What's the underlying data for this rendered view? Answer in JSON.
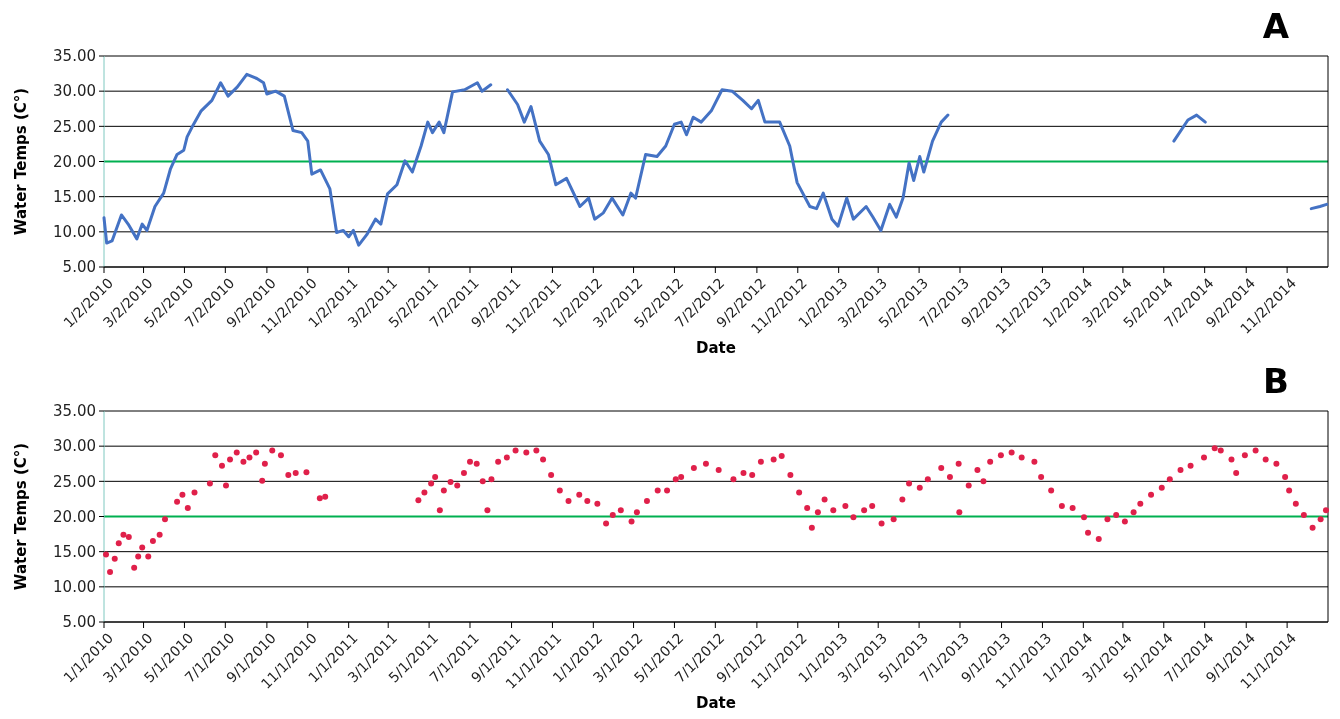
{
  "chart_data": [
    {
      "type": "line",
      "title": "A",
      "xlabel": "Date",
      "ylabel": "Water Temps (C°)",
      "grid": "y",
      "marker": "none",
      "line_style": "solid",
      "xlim": [
        "2010-01-02",
        "2015-01-02"
      ],
      "ylim": [
        5,
        35
      ],
      "yticks": [
        {
          "value": 5,
          "label": "5.00"
        },
        {
          "value": 10,
          "label": "10.00"
        },
        {
          "value": 15,
          "label": "15.00"
        },
        {
          "value": 20,
          "label": "20.00"
        },
        {
          "value": 25,
          "label": "25.00"
        },
        {
          "value": 30,
          "label": "30.00"
        },
        {
          "value": 35,
          "label": "35.00"
        }
      ],
      "xticks": [
        {
          "value": "2010-01-02",
          "label": "1/2/2010"
        },
        {
          "value": "2010-03-02",
          "label": "3/2/2010"
        },
        {
          "value": "2010-05-02",
          "label": "5/2/2010"
        },
        {
          "value": "2010-07-02",
          "label": "7/2/2010"
        },
        {
          "value": "2010-09-02",
          "label": "9/2/2010"
        },
        {
          "value": "2010-11-02",
          "label": "11/2/2010"
        },
        {
          "value": "2011-01-02",
          "label": "1/2/2011"
        },
        {
          "value": "2011-03-02",
          "label": "3/2/2011"
        },
        {
          "value": "2011-05-02",
          "label": "5/2/2011"
        },
        {
          "value": "2011-07-02",
          "label": "7/2/2011"
        },
        {
          "value": "2011-09-02",
          "label": "9/2/2011"
        },
        {
          "value": "2011-11-02",
          "label": "11/2/2011"
        },
        {
          "value": "2012-01-02",
          "label": "1/2/2012"
        },
        {
          "value": "2012-03-02",
          "label": "3/2/2012"
        },
        {
          "value": "2012-05-02",
          "label": "5/2/2012"
        },
        {
          "value": "2012-07-02",
          "label": "7/2/2012"
        },
        {
          "value": "2012-09-02",
          "label": "9/2/2012"
        },
        {
          "value": "2012-11-02",
          "label": "11/2/2012"
        },
        {
          "value": "2013-01-02",
          "label": "1/2/2013"
        },
        {
          "value": "2013-03-02",
          "label": "3/2/2013"
        },
        {
          "value": "2013-05-02",
          "label": "5/2/2013"
        },
        {
          "value": "2013-07-02",
          "label": "7/2/2013"
        },
        {
          "value": "2013-09-02",
          "label": "9/2/2013"
        },
        {
          "value": "2013-11-02",
          "label": "11/2/2013"
        },
        {
          "value": "2014-01-02",
          "label": "1/2/2014"
        },
        {
          "value": "2014-03-02",
          "label": "3/2/2014"
        },
        {
          "value": "2014-05-02",
          "label": "5/2/2014"
        },
        {
          "value": "2014-07-02",
          "label": "7/2/2014"
        },
        {
          "value": "2014-09-02",
          "label": "9/2/2014"
        },
        {
          "value": "2014-11-02",
          "label": "11/2/2014"
        }
      ],
      "ref_lines": [
        {
          "axis": "y",
          "value": 20,
          "color": "#00b050"
        }
      ],
      "series": [
        {
          "color": "#4472c4",
          "x": [
            "2010-01-02",
            "2010-01-06",
            "2010-01-14",
            "2010-01-28",
            "2010-02-07",
            "2010-02-20",
            "2010-02-28",
            "2010-03-07",
            "2010-03-19",
            "2010-04-01",
            "2010-04-11",
            "2010-04-21",
            "2010-05-01",
            "2010-05-06",
            "2010-05-14",
            "2010-05-27",
            "2010-06-12",
            "2010-06-25",
            "2010-07-06",
            "2010-07-20",
            "2010-08-03",
            "2010-08-18",
            "2010-08-28",
            "2010-09-02",
            "2010-09-15",
            "2010-09-28",
            "2010-10-11",
            "2010-10-24",
            "2010-11-02",
            "2010-11-08",
            "2010-11-21",
            "2010-12-05",
            "2010-12-15",
            "2010-12-25",
            "2011-01-02",
            "2011-01-09",
            "2011-01-17",
            "2011-01-29",
            "2011-02-11",
            "2011-02-19",
            "2011-03-01",
            "2011-03-15",
            "2011-03-27",
            "2011-04-07",
            "2011-04-20",
            "2011-04-30",
            "2011-05-07",
            "2011-05-17",
            "2011-05-24",
            "2011-06-06",
            "2011-06-24",
            "2011-07-13",
            "2011-07-20",
            "2011-08-02",
            "2011-08-15",
            "2011-08-27",
            "2011-09-11",
            "2011-09-21",
            "2011-10-01",
            "2011-10-14",
            "2011-10-27",
            "2011-11-07",
            "2011-11-23",
            "2011-12-13",
            "2011-12-26",
            "2012-01-04",
            "2012-01-17",
            "2012-01-30",
            "2012-02-15",
            "2012-02-27",
            "2012-03-05",
            "2012-03-20",
            "2012-04-06",
            "2012-04-19",
            "2012-05-02",
            "2012-05-12",
            "2012-05-20",
            "2012-05-30",
            "2012-06-11",
            "2012-06-26",
            "2012-07-12",
            "2012-07-27",
            "2012-08-12",
            "2012-08-25",
            "2012-09-04",
            "2012-09-14",
            "2012-10-06",
            "2012-10-21",
            "2012-11-01",
            "2012-11-20",
            "2012-11-30",
            "2012-12-10",
            "2012-12-23",
            "2013-01-01",
            "2013-01-14",
            "2013-01-24",
            "2013-02-12",
            "2013-02-22",
            "2013-03-06",
            "2013-03-19",
            "2013-03-29",
            "2013-04-08",
            "2013-04-17",
            "2013-04-24",
            "2013-05-03",
            "2013-05-09",
            "2013-05-22",
            "2013-06-04",
            "2013-06-14"
          ],
          "values": [
            12.0,
            8.4,
            8.7,
            12.4,
            11.1,
            9.0,
            11.1,
            10.2,
            13.6,
            15.5,
            18.9,
            21.0,
            21.6,
            23.5,
            25.0,
            27.2,
            28.7,
            31.2,
            29.3,
            30.6,
            32.4,
            31.8,
            31.2,
            29.6,
            30.0,
            29.3,
            24.4,
            24.1,
            22.9,
            18.2,
            18.8,
            16.1,
            9.9,
            10.2,
            9.3,
            10.2,
            8.1,
            9.6,
            11.8,
            11.1,
            15.4,
            16.7,
            20.1,
            18.5,
            22.2,
            25.6,
            24.1,
            25.6,
            24.1,
            29.9,
            30.2,
            31.2,
            30.0,
            30.9,
            null,
            30.2,
            28.1,
            25.6,
            27.8,
            22.9,
            21.0,
            16.7,
            17.6,
            13.6,
            14.8,
            11.8,
            12.7,
            14.8,
            12.4,
            15.5,
            14.8,
            21.0,
            20.7,
            22.2,
            25.3,
            25.6,
            23.8,
            26.3,
            25.6,
            27.2,
            30.2,
            30.0,
            28.7,
            27.5,
            28.7,
            25.6,
            25.6,
            22.2,
            17.0,
            13.6,
            13.3,
            15.5,
            11.8,
            10.8,
            14.8,
            11.8,
            13.6,
            12.1,
            10.2,
            13.9,
            12.1,
            14.8,
            19.8,
            17.3,
            20.7,
            18.5,
            22.9,
            25.6,
            26.6
          ]
        },
        {
          "color": "#4472c4",
          "x": [
            "2014-05-17",
            "2014-06-07",
            "2014-06-20",
            "2014-07-03"
          ],
          "values": [
            22.9,
            25.9,
            26.6,
            25.6
          ]
        },
        {
          "color": "#4472c4",
          "x": [
            "2014-12-08",
            "2014-12-21",
            "2014-12-31"
          ],
          "values": [
            13.3,
            13.6,
            13.9
          ]
        }
      ]
    },
    {
      "type": "scatter",
      "title": "B",
      "xlabel": "Date",
      "ylabel": "Water Temps (C°)",
      "grid": "y",
      "marker": "circle",
      "xlim": [
        "2010-01-01",
        "2015-01-01"
      ],
      "ylim": [
        5,
        35
      ],
      "yticks": [
        {
          "value": 5,
          "label": "5.00"
        },
        {
          "value": 10,
          "label": "10.00"
        },
        {
          "value": 15,
          "label": "15.00"
        },
        {
          "value": 20,
          "label": "20.00"
        },
        {
          "value": 25,
          "label": "25.00"
        },
        {
          "value": 30,
          "label": "30.00"
        },
        {
          "value": 35,
          "label": "35.00"
        }
      ],
      "xticks": [
        {
          "value": "2010-01-01",
          "label": "1/1/2010"
        },
        {
          "value": "2010-03-01",
          "label": "3/1/2010"
        },
        {
          "value": "2010-05-01",
          "label": "5/1/2010"
        },
        {
          "value": "2010-07-01",
          "label": "7/1/2010"
        },
        {
          "value": "2010-09-01",
          "label": "9/1/2010"
        },
        {
          "value": "2010-11-01",
          "label": "11/1/2010"
        },
        {
          "value": "2011-01-01",
          "label": "1/1/2011"
        },
        {
          "value": "2011-03-01",
          "label": "3/1/2011"
        },
        {
          "value": "2011-05-01",
          "label": "5/1/2011"
        },
        {
          "value": "2011-07-01",
          "label": "7/1/2011"
        },
        {
          "value": "2011-09-01",
          "label": "9/1/2011"
        },
        {
          "value": "2011-11-01",
          "label": "11/1/2011"
        },
        {
          "value": "2012-01-01",
          "label": "1/1/2012"
        },
        {
          "value": "2012-03-01",
          "label": "3/1/2012"
        },
        {
          "value": "2012-05-01",
          "label": "5/1/2012"
        },
        {
          "value": "2012-07-01",
          "label": "7/1/2012"
        },
        {
          "value": "2012-09-01",
          "label": "9/1/2012"
        },
        {
          "value": "2012-11-01",
          "label": "11/1/2012"
        },
        {
          "value": "2013-01-01",
          "label": "1/1/2013"
        },
        {
          "value": "2013-03-01",
          "label": "3/1/2013"
        },
        {
          "value": "2013-05-01",
          "label": "5/1/2013"
        },
        {
          "value": "2013-07-01",
          "label": "7/1/2013"
        },
        {
          "value": "2013-09-01",
          "label": "9/1/2013"
        },
        {
          "value": "2013-11-01",
          "label": "11/1/2013"
        },
        {
          "value": "2014-01-01",
          "label": "1/1/2014"
        },
        {
          "value": "2014-03-01",
          "label": "3/1/2014"
        },
        {
          "value": "2014-05-01",
          "label": "5/1/2014"
        },
        {
          "value": "2014-07-01",
          "label": "7/1/2014"
        },
        {
          "value": "2014-09-01",
          "label": "9/1/2014"
        },
        {
          "value": "2014-11-01",
          "label": "11/1/2014"
        }
      ],
      "ref_lines": [
        {
          "axis": "y",
          "value": 20,
          "color": "#00b050"
        }
      ],
      "series": [
        {
          "color": "#e0204a",
          "x": [
            "2010-01-04",
            "2010-01-10",
            "2010-01-17",
            "2010-01-23",
            "2010-01-30",
            "2010-02-07",
            "2010-02-15",
            "2010-02-21",
            "2010-02-27",
            "2010-03-08",
            "2010-03-15",
            "2010-03-25",
            "2010-04-02",
            "2010-04-20",
            "2010-04-28",
            "2010-05-06",
            "2010-05-16",
            "2010-06-08",
            "2010-06-16",
            "2010-06-26",
            "2010-07-02",
            "2010-07-08",
            "2010-07-18",
            "2010-07-28",
            "2010-08-06",
            "2010-08-16",
            "2010-08-25",
            "2010-08-29",
            "2010-09-09",
            "2010-09-22",
            "2010-10-03",
            "2010-10-14",
            "2010-10-30",
            "2010-11-19",
            "2010-11-27",
            "2011-04-15",
            "2011-04-24",
            "2011-05-04",
            "2011-05-10",
            "2011-05-17",
            "2011-05-23",
            "2011-06-02",
            "2011-06-12",
            "2011-06-22",
            "2011-07-01",
            "2011-07-11",
            "2011-07-20",
            "2011-07-27",
            "2011-08-02",
            "2011-08-12",
            "2011-08-25",
            "2011-09-07",
            "2011-09-23",
            "2011-10-08",
            "2011-10-18",
            "2011-10-30",
            "2011-11-12",
            "2011-11-25",
            "2011-12-11",
            "2011-12-23",
            "2012-01-07",
            "2012-01-20",
            "2012-01-30",
            "2012-02-11",
            "2012-02-27",
            "2012-03-06",
            "2012-03-21",
            "2012-04-06",
            "2012-04-20",
            "2012-05-03",
            "2012-05-11",
            "2012-05-30",
            "2012-06-17",
            "2012-07-06",
            "2012-07-28",
            "2012-08-12",
            "2012-08-25",
            "2012-09-07",
            "2012-09-26",
            "2012-10-08",
            "2012-10-21",
            "2012-11-03",
            "2012-11-15",
            "2012-11-22",
            "2012-12-01",
            "2012-12-11",
            "2012-12-24",
            "2013-01-11",
            "2013-01-23",
            "2013-02-08",
            "2013-02-20",
            "2013-03-06",
            "2013-03-24",
            "2013-04-06",
            "2013-04-16",
            "2013-05-02",
            "2013-05-14",
            "2013-06-03",
            "2013-06-16",
            "2013-06-29",
            "2013-06-30",
            "2013-07-14",
            "2013-07-27",
            "2013-08-05",
            "2013-08-15",
            "2013-08-31",
            "2013-09-16",
            "2013-10-01",
            "2013-10-20",
            "2013-10-30",
            "2013-11-14",
            "2013-11-30",
            "2013-12-16",
            "2014-01-02",
            "2014-01-08",
            "2014-01-24",
            "2014-02-06",
            "2014-02-19",
            "2014-03-04",
            "2014-03-17",
            "2014-03-27",
            "2014-04-12",
            "2014-04-28",
            "2014-05-10",
            "2014-05-26",
            "2014-06-10",
            "2014-06-30",
            "2014-07-16",
            "2014-07-25",
            "2014-08-10",
            "2014-08-17",
            "2014-08-30",
            "2014-09-15",
            "2014-09-30",
            "2014-10-16",
            "2014-10-29",
            "2014-11-04",
            "2014-11-14",
            "2014-11-26",
            "2014-12-09",
            "2014-12-21",
            "2014-12-29"
          ],
          "values": [
            14.6,
            12.1,
            14.0,
            16.2,
            17.4,
            17.1,
            12.7,
            14.3,
            15.6,
            14.3,
            16.5,
            17.4,
            19.6,
            22.1,
            23.1,
            21.2,
            23.4,
            24.7,
            28.7,
            27.2,
            24.4,
            28.1,
            29.1,
            27.8,
            28.4,
            29.1,
            25.1,
            27.5,
            29.4,
            28.7,
            25.9,
            26.2,
            26.3,
            22.6,
            22.8,
            22.3,
            23.4,
            24.7,
            25.6,
            20.9,
            23.7,
            24.9,
            24.4,
            26.2,
            27.8,
            27.5,
            25.0,
            20.9,
            25.3,
            27.8,
            28.4,
            29.4,
            29.1,
            29.4,
            28.1,
            25.9,
            23.7,
            22.2,
            23.1,
            22.2,
            21.8,
            19.0,
            20.2,
            20.9,
            19.3,
            20.6,
            22.2,
            23.7,
            23.7,
            25.3,
            25.6,
            26.9,
            27.5,
            26.6,
            25.3,
            26.2,
            25.9,
            27.8,
            28.1,
            28.6,
            25.9,
            23.4,
            21.2,
            18.4,
            20.6,
            22.4,
            20.9,
            21.5,
            19.9,
            20.9,
            21.5,
            19.0,
            19.6,
            22.4,
            24.7,
            24.1,
            25.3,
            26.9,
            25.6,
            27.5,
            20.6,
            24.4,
            26.6,
            25.0,
            27.8,
            28.7,
            29.1,
            28.4,
            27.8,
            25.6,
            23.7,
            21.5,
            21.2,
            19.9,
            17.7,
            16.8,
            19.6,
            20.2,
            19.3,
            20.6,
            21.8,
            23.1,
            24.1,
            25.3,
            26.6,
            27.2,
            28.4,
            29.7,
            29.4,
            28.1,
            26.2,
            28.7,
            29.4,
            28.1,
            27.5,
            25.6,
            23.7,
            21.8,
            20.2,
            18.4,
            19.6,
            20.9
          ]
        }
      ]
    }
  ]
}
